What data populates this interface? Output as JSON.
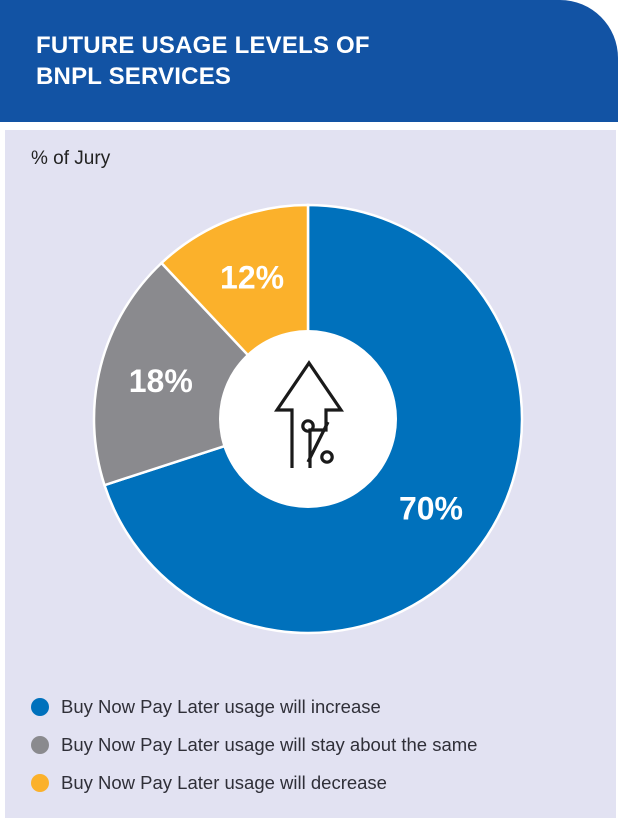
{
  "title": "FUTURE USAGE LEVELS OF BNPL SERVICES",
  "subtitle": "% of Jury",
  "colors": {
    "header": "#1253a4",
    "panel": "#e2e2f2",
    "increase": "#0071bc",
    "same": "#8a8a8e",
    "decrease": "#fbb12b"
  },
  "center_icon": "arrow-up-percent-icon",
  "chart_data": {
    "type": "pie",
    "title": "FUTURE USAGE LEVELS OF BNPL SERVICES",
    "subtitle": "% of Jury",
    "donut": true,
    "legend_position": "bottom-left",
    "slices": [
      {
        "label": "Buy Now Pay Later usage will increase",
        "value": 70,
        "display": "70%",
        "color": "#0071bc"
      },
      {
        "label": "Buy Now Pay Later usage will stay about the same",
        "value": 18,
        "display": "18%",
        "color": "#8a8a8e"
      },
      {
        "label": "Buy Now Pay Later usage will decrease",
        "value": 12,
        "display": "12%",
        "color": "#fbb12b"
      }
    ]
  }
}
